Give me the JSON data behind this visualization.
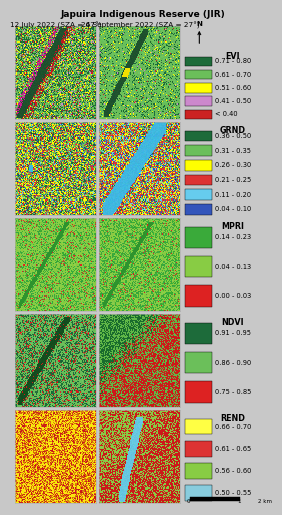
{
  "title": "Japuira Indigenous Reserve (JIR)",
  "col1_label": "12 July 2022 (SZA = 47°)",
  "col2_label": "26 September 2022 (SZA = 27°)",
  "indices": [
    "EVI",
    "GRND",
    "MPRI",
    "NDVI",
    "REND"
  ],
  "legends": {
    "EVI": {
      "labels": [
        "0.71 - 0.80",
        "0.61 - 0.70",
        "0.51 - 0.60",
        "0.41 - 0.50",
        "< 0.40"
      ],
      "colors": [
        "#1d6b3a",
        "#6bbf5a",
        "#ffff00",
        "#cc88cc",
        "#cc2222"
      ]
    },
    "GRND": {
      "labels": [
        "0.36 - 0.50",
        "0.31 - 0.35",
        "0.26 - 0.30",
        "0.21 - 0.25",
        "0.11 - 0.20",
        "0.04 - 0.10"
      ],
      "colors": [
        "#1d6b3a",
        "#6bbf5a",
        "#ffff00",
        "#dd3333",
        "#66ccee",
        "#3355bb"
      ]
    },
    "MPRI": {
      "labels": [
        "0.14 - 0.23",
        "0.04 - 0.13",
        "0.00 - 0.03"
      ],
      "colors": [
        "#3aaa3a",
        "#88cc44",
        "#dd2222"
      ]
    },
    "NDVI": {
      "labels": [
        "0.91 - 0.95",
        "0.86 - 0.90",
        "0.75 - 0.85"
      ],
      "colors": [
        "#1d6b3a",
        "#6bbf5a",
        "#dd2222"
      ]
    },
    "REND": {
      "labels": [
        "0.66 - 0.70",
        "0.61 - 0.65",
        "0.56 - 0.60",
        "0.50 - 0.55"
      ],
      "colors": [
        "#ffff44",
        "#dd3333",
        "#88cc44",
        "#88ccdd"
      ]
    }
  },
  "panel_bg": "#c8c8c8",
  "title_fontsize": 6.5,
  "label_fontsize": 5.2,
  "legend_title_fontsize": 5.8,
  "legend_item_fontsize": 4.8
}
